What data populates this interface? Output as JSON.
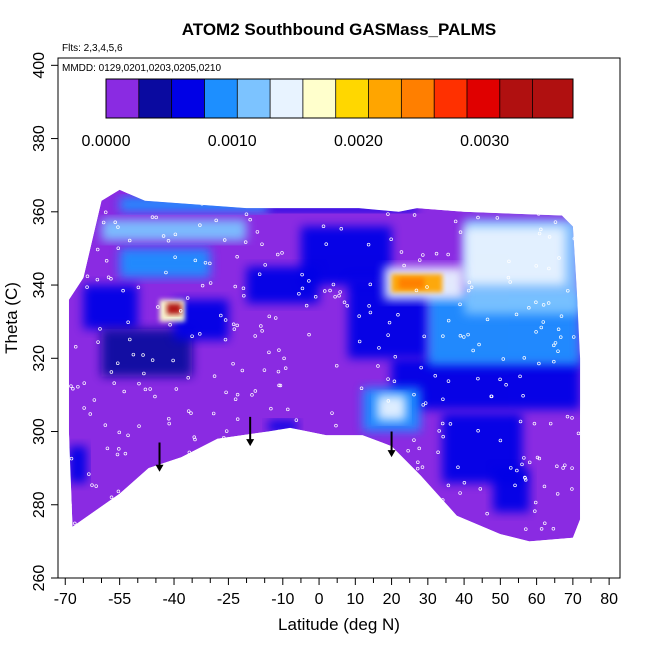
{
  "chart_data": {
    "type": "heatmap",
    "title": "ATOM2 Southbound GASMass_PALMS",
    "annotations": [
      "Flts: 2,3,4,5,6",
      "MMDD: 0129,0201,0203,0205,0210"
    ],
    "xlabel": "Latitude (deg N)",
    "ylabel": "Theta (C)",
    "xlim": [
      -72,
      83
    ],
    "ylim": [
      260,
      402
    ],
    "xticks_labeled": [
      -70,
      -55,
      -40,
      -25,
      -10,
      0,
      10,
      20,
      30,
      40,
      50,
      60,
      70,
      80
    ],
    "xticks_minor": [
      -65,
      -60,
      -50,
      -45,
      -35,
      -30,
      -20,
      -15,
      -5,
      5,
      15,
      25,
      35,
      45,
      55,
      65,
      75
    ],
    "yticks": [
      260,
      280,
      300,
      320,
      340,
      360,
      380,
      400
    ],
    "colorbar": {
      "range": [
        0,
        0.0037
      ],
      "tick_values": [
        0.0,
        0.001,
        0.002,
        0.003
      ],
      "tick_labels": [
        "0.0000",
        "0.0010",
        "0.0020",
        "0.0030"
      ],
      "boundaries": [
        0.0,
        0.00026,
        0.00052,
        0.00078,
        0.00104,
        0.0013,
        0.00156,
        0.00182,
        0.00208,
        0.00234,
        0.0026,
        0.00286,
        0.00312,
        0.00338,
        0.0037
      ],
      "colors": [
        "#8a2be2",
        "#0a0aa0",
        "#0000e6",
        "#1d8fff",
        "#7cc3ff",
        "#e8f3ff",
        "#ffffcc",
        "#ffd700",
        "#ffa500",
        "#ff7f00",
        "#ff3000",
        "#e00000",
        "#b01010"
      ]
    },
    "data_boundary": [
      [
        -68,
        274
      ],
      [
        -55,
        283
      ],
      [
        -47,
        290
      ],
      [
        -38,
        293
      ],
      [
        -28,
        298
      ],
      [
        -14,
        300
      ],
      [
        -8,
        301
      ],
      [
        2,
        299
      ],
      [
        12,
        299
      ],
      [
        20,
        296
      ],
      [
        28,
        288
      ],
      [
        38,
        277
      ],
      [
        50,
        272
      ],
      [
        58,
        270
      ],
      [
        70,
        271
      ],
      [
        72,
        276
      ],
      [
        72,
        293
      ],
      [
        72,
        320
      ],
      [
        71,
        340
      ],
      [
        70,
        356
      ],
      [
        67,
        359
      ],
      [
        40,
        360
      ],
      [
        27,
        361
      ],
      [
        22,
        360
      ],
      [
        11,
        361
      ],
      [
        -11,
        361
      ],
      [
        -20,
        361
      ],
      [
        -48,
        363
      ],
      [
        -55,
        366
      ],
      [
        -60,
        363
      ],
      [
        -65,
        342
      ],
      [
        -69,
        336
      ],
      [
        -69,
        300
      ]
    ],
    "regions": [
      {
        "shape": "rect",
        "lat": [
          -55,
          -14
        ],
        "theta": [
          360,
          364
        ],
        "value": 0.00085
      },
      {
        "shape": "rect",
        "lat": [
          -14,
          27
        ],
        "theta": [
          360,
          362
        ],
        "value": 0.00068
      },
      {
        "shape": "rect",
        "lat": [
          -60,
          -20
        ],
        "theta": [
          352,
          358
        ],
        "value": 0.0011
      },
      {
        "shape": "rect",
        "lat": [
          -55,
          -30
        ],
        "theta": [
          342,
          350
        ],
        "value": 0.0009
      },
      {
        "shape": "rect",
        "lat": [
          -65,
          -50
        ],
        "theta": [
          328,
          340
        ],
        "value": 0.0007
      },
      {
        "shape": "rect",
        "lat": [
          -5,
          20
        ],
        "theta": [
          340,
          356
        ],
        "value": 0.0007
      },
      {
        "shape": "rect",
        "lat": [
          -60,
          -35
        ],
        "theta": [
          315,
          328
        ],
        "value": 0.00045
      },
      {
        "shape": "rect",
        "lat": [
          -40,
          -25
        ],
        "theta": [
          325,
          336
        ],
        "value": 0.00075
      },
      {
        "shape": "rect",
        "lat": [
          -20,
          0
        ],
        "theta": [
          335,
          345
        ],
        "value": 0.0006
      },
      {
        "shape": "rect",
        "lat": [
          20,
          72
        ],
        "theta": [
          306,
          320
        ],
        "value": 0.00068
      },
      {
        "shape": "rect",
        "lat": [
          8,
          30
        ],
        "theta": [
          320,
          342
        ],
        "value": 0.00072
      },
      {
        "shape": "rect",
        "lat": [
          30,
          72
        ],
        "theta": [
          318,
          338
        ],
        "value": 0.0009
      },
      {
        "shape": "rect",
        "lat": [
          40,
          72
        ],
        "theta": [
          332,
          358
        ],
        "value": 0.0012
      },
      {
        "shape": "rect",
        "lat": [
          40,
          68
        ],
        "theta": [
          340,
          356
        ],
        "value": 0.00135
      },
      {
        "shape": "rect",
        "lat": [
          18,
          40
        ],
        "theta": [
          336,
          345
        ],
        "value": 0.0015
      },
      {
        "shape": "rect",
        "lat": [
          20,
          34
        ],
        "theta": [
          338,
          343
        ],
        "value": 0.0022
      },
      {
        "shape": "rect",
        "lat": [
          22,
          29
        ],
        "theta": [
          339,
          342
        ],
        "value": 0.0024
      },
      {
        "shape": "rect",
        "lat": [
          -69,
          -64
        ],
        "theta": [
          286,
          296
        ],
        "value": 0.00065
      },
      {
        "shape": "rect",
        "lat": [
          12,
          28
        ],
        "theta": [
          300,
          312
        ],
        "value": 0.0008
      },
      {
        "shape": "rect",
        "lat": [
          16,
          24
        ],
        "theta": [
          303,
          310
        ],
        "value": 0.0013
      },
      {
        "shape": "rect",
        "lat": [
          34,
          56
        ],
        "theta": [
          286,
          305
        ],
        "value": 0.00065
      },
      {
        "shape": "rect",
        "lat": [
          48,
          58
        ],
        "theta": [
          278,
          290
        ],
        "value": 0.0006
      },
      {
        "shape": "rect",
        "lat": [
          -14,
          -6
        ],
        "theta": [
          300,
          303
        ],
        "value": 0.0006
      },
      {
        "shape": "rect",
        "lat": [
          -44,
          -37
        ],
        "theta": [
          330,
          336
        ],
        "value": 0.0018
      },
      {
        "shape": "rect",
        "lat": [
          -42,
          -38
        ],
        "theta": [
          332,
          335
        ],
        "value": 0.0032
      }
    ],
    "markers": [
      {
        "type": "arrow-down",
        "lat": -44,
        "theta_top": 297,
        "theta_bottom": 289
      },
      {
        "type": "arrow-down",
        "lat": -19,
        "theta_top": 304,
        "theta_bottom": 296
      },
      {
        "type": "arrow-down",
        "lat": 20,
        "theta_top": 300,
        "theta_bottom": 293
      }
    ],
    "flight_track_points_theta_range": [
      270,
      366
    ],
    "flight_track_points_lat_range": [
      -69,
      72
    ]
  }
}
